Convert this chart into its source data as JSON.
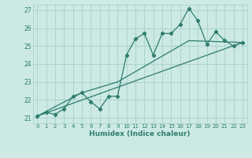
{
  "xlabel": "Humidex (Indice chaleur)",
  "ylabel": "",
  "bg_color": "#cce9e4",
  "grid_color": "#a8cfc9",
  "line_color": "#2e7d6e",
  "xlim": [
    -0.5,
    23.5
  ],
  "ylim": [
    20.7,
    27.3
  ],
  "yticks": [
    21,
    22,
    23,
    24,
    25,
    26,
    27
  ],
  "xticks": [
    0,
    1,
    2,
    3,
    4,
    5,
    6,
    7,
    8,
    9,
    10,
    11,
    12,
    13,
    14,
    15,
    16,
    17,
    18,
    19,
    20,
    21,
    22,
    23
  ],
  "line1_x": [
    0,
    1,
    2,
    3,
    4,
    5,
    6,
    7,
    8,
    9,
    10,
    11,
    12,
    13,
    14,
    15,
    16,
    17,
    18,
    19,
    20,
    21,
    22,
    23
  ],
  "line1_y": [
    21.1,
    21.3,
    21.2,
    21.5,
    22.2,
    22.4,
    21.9,
    21.5,
    22.2,
    22.2,
    24.5,
    25.4,
    25.7,
    24.5,
    25.7,
    25.7,
    26.2,
    27.1,
    26.4,
    25.1,
    25.8,
    25.3,
    25.0,
    25.2
  ],
  "line2_x": [
    0,
    5,
    9,
    17,
    23
  ],
  "line2_y": [
    21.1,
    22.4,
    23.0,
    25.3,
    25.2
  ],
  "line3_x": [
    0,
    23
  ],
  "line3_y": [
    21.1,
    25.2
  ]
}
